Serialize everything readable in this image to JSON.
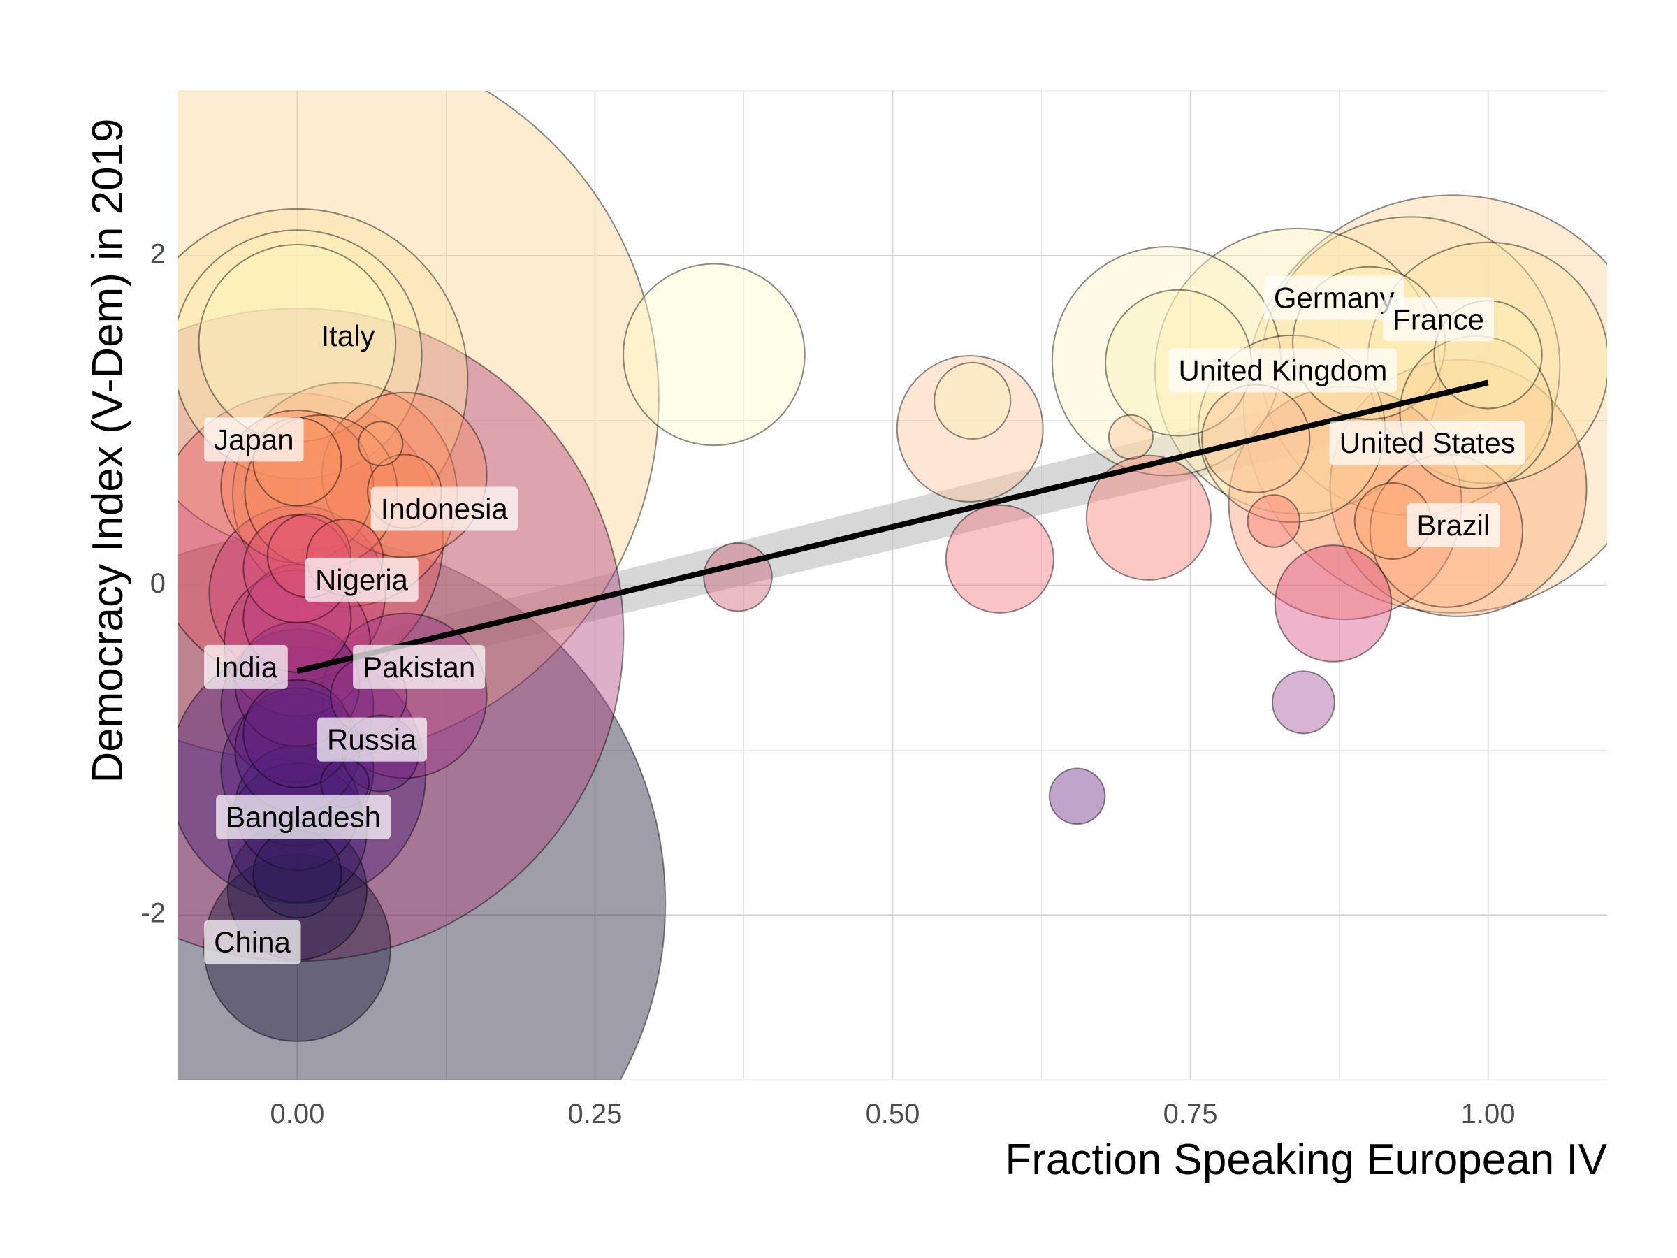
{
  "chart_data": {
    "type": "scatter",
    "xlabel": "Fraction Speaking European IV",
    "ylabel": "Democracy Index (V-Dem) in 2019",
    "xlim": [
      -0.1,
      1.1
    ],
    "ylim": [
      -3.0,
      3.0
    ],
    "x_ticks": [
      {
        "value": 0.0,
        "label": "0.00"
      },
      {
        "value": 0.25,
        "label": "0.25"
      },
      {
        "value": 0.5,
        "label": "0.50"
      },
      {
        "value": 0.75,
        "label": "0.75"
      },
      {
        "value": 1.0,
        "label": "1.00"
      }
    ],
    "y_ticks": [
      {
        "value": -2,
        "label": "-2"
      },
      {
        "value": 0,
        "label": "0"
      },
      {
        "value": 2,
        "label": "2"
      }
    ],
    "grid": true,
    "legend": "none",
    "fit_line": {
      "x": [
        0.0,
        1.0
      ],
      "y": [
        -0.52,
        1.23
      ]
    },
    "confidence_band": {
      "x": [
        0.0,
        1.0
      ],
      "y_lower": [
        -0.64,
        1.07
      ],
      "y_upper": [
        -0.4,
        1.4
      ]
    },
    "colors": {
      "low": "#0b0924",
      "mid": "#c23d80",
      "high": "#fcfdbf"
    },
    "points": [
      {
        "x": 0.0,
        "y": -1.93,
        "size": 1400,
        "color": "#1a1532"
      },
      {
        "x": 0.0,
        "y": -2.2,
        "size": 90,
        "color": "#1b1638"
      },
      {
        "x": 0.0,
        "y": -1.85,
        "size": 50,
        "color": "#241b4a"
      },
      {
        "x": 0.0,
        "y": -1.75,
        "size": 20,
        "color": "#2a1d55"
      },
      {
        "x": 0.0,
        "y": -1.5,
        "size": 50,
        "color": "#3a1a6b"
      },
      {
        "x": 0.0,
        "y": -1.35,
        "size": 40,
        "color": "#451e73"
      },
      {
        "x": 0.0,
        "y": -1.15,
        "size": 170,
        "color": "#4f1e7a"
      },
      {
        "x": 0.0,
        "y": -1.12,
        "size": 60,
        "color": "#521f7b"
      },
      {
        "x": 0.0,
        "y": -1.0,
        "size": 40,
        "color": "#561f7c"
      },
      {
        "x": 0.0,
        "y": -0.9,
        "size": 30,
        "color": "#5c1f7f"
      },
      {
        "x": 0.0,
        "y": -0.73,
        "size": 60,
        "color": "#6a227e"
      },
      {
        "x": 0.0,
        "y": -0.6,
        "size": 40,
        "color": "#7b2680"
      },
      {
        "x": 0.0,
        "y": -0.3,
        "size": 1100,
        "color": "#b0407f"
      },
      {
        "x": 0.0,
        "y": -0.35,
        "size": 55,
        "color": "#b53d7c"
      },
      {
        "x": 0.0,
        "y": -0.2,
        "size": 30,
        "color": "#c0417c"
      },
      {
        "x": 0.0,
        "y": -0.05,
        "size": 80,
        "color": "#cc447a"
      },
      {
        "x": 0.0,
        "y": 0.1,
        "size": 30,
        "color": "#d6497a"
      },
      {
        "x": 0.0,
        "y": 0.28,
        "size": 220,
        "color": "#e9596a"
      },
      {
        "x": 0.01,
        "y": 0.18,
        "size": 18,
        "color": "#e4566e"
      },
      {
        "x": 0.0,
        "y": 0.6,
        "size": 60,
        "color": "#f8845a"
      },
      {
        "x": 0.0,
        "y": 0.75,
        "size": 20,
        "color": "#fa9560"
      },
      {
        "x": 0.0,
        "y": 1.13,
        "size": 1350,
        "color": "#fdd18f"
      },
      {
        "x": 0.0,
        "y": 1.25,
        "size": 300,
        "color": "#fde2a2"
      },
      {
        "x": 0.0,
        "y": 1.4,
        "size": 160,
        "color": "#fdf1b4"
      },
      {
        "x": 0.0,
        "y": 1.47,
        "size": 100,
        "color": "#fcf8bc"
      },
      {
        "x": 0.04,
        "y": 0.55,
        "size": 130,
        "color": "#f98a5f"
      },
      {
        "x": 0.02,
        "y": 0.57,
        "size": 60,
        "color": "#f98a5f"
      },
      {
        "x": 0.07,
        "y": 0.86,
        "size": 5,
        "color": "#fbaa73"
      },
      {
        "x": 0.04,
        "y": 0.17,
        "size": 15,
        "color": "#e85a6b"
      },
      {
        "x": 0.09,
        "y": 0.67,
        "size": 70,
        "color": "#f98a5f"
      },
      {
        "x": 0.09,
        "y": 0.57,
        "size": 14,
        "color": "#f98a5f"
      },
      {
        "x": 0.09,
        "y": -0.67,
        "size": 70,
        "color": "#9b3488"
      },
      {
        "x": 0.06,
        "y": -0.67,
        "size": 15,
        "color": "#9c368a"
      },
      {
        "x": 0.07,
        "y": -1.02,
        "size": 15,
        "color": "#5f1f7f"
      },
      {
        "x": 0.04,
        "y": -1.2,
        "size": 6,
        "color": "#4f1e7a"
      },
      {
        "x": 0.35,
        "y": 1.4,
        "size": 85,
        "color": "#fcfac5"
      },
      {
        "x": 0.37,
        "y": 0.05,
        "size": 12,
        "color": "#c95d74"
      },
      {
        "x": 0.565,
        "y": 0.95,
        "size": 55,
        "color": "#fcc49a"
      },
      {
        "x": 0.567,
        "y": 1.12,
        "size": 15,
        "color": "#fcf0b4"
      },
      {
        "x": 0.59,
        "y": 0.16,
        "size": 30,
        "color": "#f0707a"
      },
      {
        "x": 0.655,
        "y": -1.28,
        "size": 8,
        "color": "#6a2580"
      },
      {
        "x": 0.7,
        "y": 0.9,
        "size": 5,
        "color": "#fcc49a"
      },
      {
        "x": 0.715,
        "y": 0.41,
        "size": 40,
        "color": "#f87b73"
      },
      {
        "x": 0.73,
        "y": 1.36,
        "size": 135,
        "color": "#fdf4c0"
      },
      {
        "x": 0.74,
        "y": 1.35,
        "size": 55,
        "color": "#fdf0b8"
      },
      {
        "x": 0.805,
        "y": 0.89,
        "size": 30,
        "color": "#fcc9a0"
      },
      {
        "x": 0.82,
        "y": 0.39,
        "size": 7,
        "color": "#f57972"
      },
      {
        "x": 0.845,
        "y": -0.71,
        "size": 10,
        "color": "#a24d98"
      },
      {
        "x": 0.84,
        "y": 1.3,
        "size": 210,
        "color": "#fdebb0"
      },
      {
        "x": 0.835,
        "y": 0.95,
        "size": 90,
        "color": "#fcd9a0"
      },
      {
        "x": 0.87,
        "y": -0.11,
        "size": 35,
        "color": "#d94a80"
      },
      {
        "x": 0.88,
        "y": 0.5,
        "size": 140,
        "color": "#fc9c72"
      },
      {
        "x": 0.92,
        "y": 0.39,
        "size": 15,
        "color": "#fca770"
      },
      {
        "x": 0.935,
        "y": 1.33,
        "size": 230,
        "color": "#fde3a8"
      },
      {
        "x": 0.9,
        "y": 1.47,
        "size": 60,
        "color": "#fdefb8"
      },
      {
        "x": 0.97,
        "y": 1.1,
        "size": 450,
        "color": "#fdd098"
      },
      {
        "x": 0.975,
        "y": 0.59,
        "size": 170,
        "color": "#fdae78"
      },
      {
        "x": 0.965,
        "y": 0.33,
        "size": 60,
        "color": "#fcb38a"
      },
      {
        "x": 1.0,
        "y": 1.35,
        "size": 150,
        "color": "#fde4a5"
      },
      {
        "x": 1.0,
        "y": 1.4,
        "size": 30,
        "color": "#fbeeb2"
      },
      {
        "x": 0.99,
        "y": 1.05,
        "size": 60,
        "color": "#fdd8a0"
      }
    ],
    "labels": [
      {
        "text": "Italy",
        "x": 0.02,
        "y": 1.5,
        "box": false
      },
      {
        "text": "Japan",
        "x": -0.07,
        "y": 0.87,
        "box": true
      },
      {
        "text": "Indonesia",
        "x": 0.07,
        "y": 0.45,
        "box": true
      },
      {
        "text": "Nigeria",
        "x": 0.015,
        "y": 0.02,
        "box": true
      },
      {
        "text": "India",
        "x": -0.07,
        "y": -0.51,
        "box": true
      },
      {
        "text": "Pakistan",
        "x": 0.055,
        "y": -0.51,
        "box": true
      },
      {
        "text": "Russia",
        "x": 0.025,
        "y": -0.95,
        "box": true
      },
      {
        "text": "Bangladesh",
        "x": -0.06,
        "y": -1.42,
        "box": true
      },
      {
        "text": "China",
        "x": -0.07,
        "y": -2.18,
        "box": true
      },
      {
        "text": "Germany",
        "x": 0.82,
        "y": 1.73,
        "box": true
      },
      {
        "text": "France",
        "x": 0.92,
        "y": 1.6,
        "box": true
      },
      {
        "text": "United Kingdom",
        "x": 0.74,
        "y": 1.29,
        "box": true
      },
      {
        "text": "United States",
        "x": 0.875,
        "y": 0.85,
        "box": true
      },
      {
        "text": "Brazil",
        "x": 0.94,
        "y": 0.35,
        "box": true
      }
    ]
  }
}
